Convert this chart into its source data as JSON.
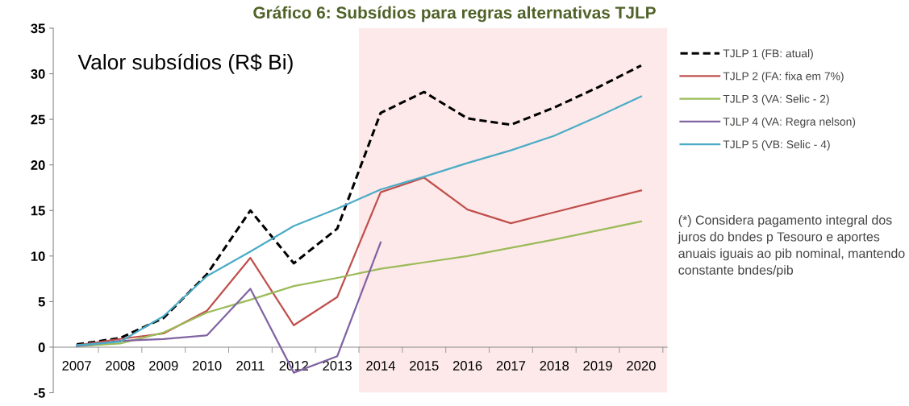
{
  "chart_data": {
    "type": "line",
    "title": "Gráfico 6: Subsídios para regras alternativas TJLP",
    "subtitle": "Valor subsídios (R$ Bi)",
    "categories": [
      "2007",
      "2008",
      "2009",
      "2010",
      "2011",
      "2012",
      "2013",
      "2014",
      "2015",
      "2016",
      "2017",
      "2018",
      "2019",
      "2020"
    ],
    "ylim": [
      -5,
      35
    ],
    "yticks": [
      -5,
      0,
      5,
      10,
      15,
      20,
      25,
      30,
      35
    ],
    "grid": false,
    "legend": "right",
    "series": [
      {
        "name": "TJLP 1 (FB: atual)",
        "color": "#000000",
        "line_style": "dashed",
        "values": [
          0.3,
          1.0,
          3.2,
          8.0,
          15.0,
          9.2,
          13.0,
          25.7,
          28.0,
          25.1,
          24.4,
          26.3,
          28.5,
          30.9
        ]
      },
      {
        "name": "TJLP 2 (FA: fixa em 7%)",
        "color": "#c0504d",
        "line_style": "solid",
        "values": [
          0.2,
          0.9,
          1.5,
          4.0,
          9.8,
          2.4,
          5.5,
          17.0,
          18.6,
          15.1,
          13.6,
          14.8,
          16.0,
          17.2
        ]
      },
      {
        "name": "TJLP 3 (VA: Selic - 2)",
        "color": "#9bbb59",
        "line_style": "solid",
        "values": [
          0.1,
          0.4,
          1.6,
          3.8,
          5.2,
          6.7,
          7.6,
          8.6,
          9.3,
          10.0,
          10.9,
          11.8,
          12.8,
          13.8
        ]
      },
      {
        "name": "TJLP 4 (VA: Regra nelson)",
        "color": "#8064a2",
        "line_style": "solid",
        "values": [
          0.1,
          0.7,
          0.9,
          1.3,
          6.4,
          -2.8,
          -1.0,
          11.5,
          null,
          null,
          null,
          null,
          null,
          null
        ]
      },
      {
        "name": "TJLP 5 (VB: Selic - 4)",
        "color": "#4bacc6",
        "line_style": "solid",
        "values": [
          0.2,
          0.6,
          3.4,
          7.8,
          10.5,
          13.3,
          15.2,
          17.3,
          18.7,
          20.2,
          21.6,
          23.2,
          25.3,
          27.5
        ]
      }
    ],
    "bands": [
      {
        "axis": "x",
        "from": "2014",
        "to": "2020",
        "color": "#fde9e9"
      }
    ],
    "annotations": [
      "(*) Considera pagamento integral dos juros do bndes p Tesouro e aportes anuais iguais ao pib nominal, mantendo constante bndes/pib"
    ]
  }
}
